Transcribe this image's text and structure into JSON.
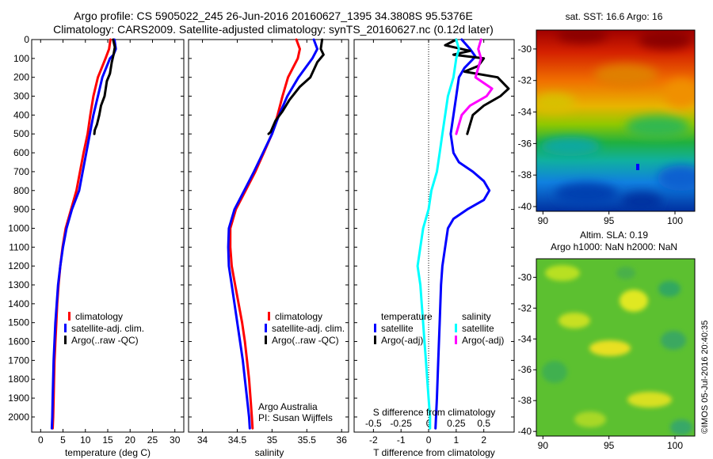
{
  "header": {
    "title_line1": "Argo profile: CS 5905022_245 26-Jun-2016 20160627_1395 34.3808S 95.5376E",
    "title_line2": "Climatology: CARS2009. Satellite-adjusted climatology: synTS_20160627.nc (0.12d later)"
  },
  "colors": {
    "climatology": "#ff0000",
    "satellite": "#0000ff",
    "argo": "#000000",
    "s_satellite": "#00ffff",
    "s_argo": "#ff00ff"
  },
  "chart_data": [
    {
      "type": "line",
      "name": "temperature-profile",
      "xlabel": "temperature (deg C)",
      "xlim": [
        -2,
        32
      ],
      "ylim": [
        2080,
        0
      ],
      "xticks": [
        "0",
        "5",
        "10",
        "15",
        "20",
        "25",
        "30"
      ],
      "yticks": [
        "0",
        "100",
        "200",
        "300",
        "400",
        "500",
        "600",
        "700",
        "800",
        "900",
        "1000",
        "1100",
        "1200",
        "1300",
        "1400",
        "1500",
        "1600",
        "1700",
        "1800",
        "1900",
        "2000"
      ],
      "legend": [
        "climatology",
        "satellite-adj. clim.",
        "Argo(..raw -QC)"
      ],
      "series": [
        {
          "color": "#ff0000",
          "points": [
            [
              15.6,
              0
            ],
            [
              15.3,
              50
            ],
            [
              14.5,
              100
            ],
            [
              12.8,
              200
            ],
            [
              11.8,
              300
            ],
            [
              11.1,
              400
            ],
            [
              10.5,
              500
            ],
            [
              9.6,
              600
            ],
            [
              8.8,
              700
            ],
            [
              8.0,
              800
            ],
            [
              6.8,
              900
            ],
            [
              5.6,
              1000
            ],
            [
              4.9,
              1100
            ],
            [
              4.4,
              1200
            ],
            [
              4.0,
              1300
            ],
            [
              3.7,
              1400
            ],
            [
              3.5,
              1500
            ],
            [
              3.3,
              1600
            ],
            [
              3.1,
              1700
            ],
            [
              3.0,
              1800
            ],
            [
              2.9,
              1900
            ],
            [
              2.8,
              2000
            ],
            [
              2.7,
              2060
            ]
          ]
        },
        {
          "color": "#0000ff",
          "points": [
            [
              16.5,
              0
            ],
            [
              16.8,
              50
            ],
            [
              16.3,
              80
            ],
            [
              15.5,
              100
            ],
            [
              13.8,
              200
            ],
            [
              12.8,
              300
            ],
            [
              11.8,
              400
            ],
            [
              11.0,
              500
            ],
            [
              10.2,
              600
            ],
            [
              9.4,
              700
            ],
            [
              8.6,
              800
            ],
            [
              7.0,
              900
            ],
            [
              5.8,
              1000
            ],
            [
              5.0,
              1100
            ],
            [
              4.4,
              1200
            ],
            [
              3.9,
              1300
            ],
            [
              3.6,
              1400
            ],
            [
              3.3,
              1500
            ],
            [
              3.1,
              1600
            ],
            [
              2.9,
              1700
            ],
            [
              2.8,
              1800
            ],
            [
              2.7,
              1900
            ],
            [
              2.6,
              2000
            ],
            [
              2.5,
              2060
            ]
          ]
        },
        {
          "color": "#000000",
          "points": [
            [
              16.2,
              0
            ],
            [
              16.6,
              40
            ],
            [
              16.3,
              80
            ],
            [
              15.9,
              120
            ],
            [
              15.5,
              180
            ],
            [
              14.8,
              220
            ],
            [
              14.3,
              300
            ],
            [
              13.5,
              350
            ],
            [
              13.1,
              400
            ],
            [
              12.6,
              450
            ],
            [
              12.1,
              480
            ],
            [
              12.0,
              500
            ]
          ]
        }
      ]
    },
    {
      "type": "line",
      "name": "salinity-profile",
      "xlabel": "salinity",
      "xlim": [
        33.8,
        36.1
      ],
      "ylim": [
        2080,
        0
      ],
      "xticks": [
        "34",
        "34.5",
        "35",
        "35.5",
        "36"
      ],
      "legend": [
        "climatology",
        "satellite-adj. clim.",
        "Argo(..raw -QC)"
      ],
      "annotation": [
        "Argo Australia",
        "PI: Susan Wijffels"
      ],
      "series": [
        {
          "color": "#ff0000",
          "points": [
            [
              35.35,
              0
            ],
            [
              35.4,
              50
            ],
            [
              35.37,
              100
            ],
            [
              35.23,
              200
            ],
            [
              35.15,
              300
            ],
            [
              35.08,
              400
            ],
            [
              35.0,
              500
            ],
            [
              34.88,
              600
            ],
            [
              34.76,
              700
            ],
            [
              34.62,
              800
            ],
            [
              34.48,
              900
            ],
            [
              34.4,
              1000
            ],
            [
              34.4,
              1100
            ],
            [
              34.42,
              1200
            ],
            [
              34.47,
              1300
            ],
            [
              34.52,
              1400
            ],
            [
              34.57,
              1500
            ],
            [
              34.61,
              1600
            ],
            [
              34.64,
              1700
            ],
            [
              34.67,
              1800
            ],
            [
              34.69,
              1900
            ],
            [
              34.71,
              2000
            ],
            [
              34.72,
              2060
            ]
          ]
        },
        {
          "color": "#0000ff",
          "points": [
            [
              35.6,
              0
            ],
            [
              35.65,
              50
            ],
            [
              35.58,
              100
            ],
            [
              35.38,
              200
            ],
            [
              35.22,
              300
            ],
            [
              35.1,
              400
            ],
            [
              35.0,
              500
            ],
            [
              34.87,
              600
            ],
            [
              34.74,
              700
            ],
            [
              34.6,
              800
            ],
            [
              34.46,
              900
            ],
            [
              34.38,
              1000
            ],
            [
              34.37,
              1100
            ],
            [
              34.38,
              1200
            ],
            [
              34.42,
              1300
            ],
            [
              34.46,
              1400
            ],
            [
              34.5,
              1500
            ],
            [
              34.54,
              1600
            ],
            [
              34.58,
              1700
            ],
            [
              34.61,
              1800
            ],
            [
              34.64,
              1900
            ],
            [
              34.67,
              2000
            ],
            [
              34.68,
              2060
            ]
          ]
        },
        {
          "color": "#000000",
          "points": [
            [
              35.72,
              0
            ],
            [
              35.7,
              50
            ],
            [
              35.74,
              80
            ],
            [
              35.65,
              120
            ],
            [
              35.55,
              200
            ],
            [
              35.4,
              250
            ],
            [
              35.25,
              320
            ],
            [
              35.15,
              380
            ],
            [
              35.05,
              430
            ],
            [
              34.98,
              490
            ],
            [
              34.95,
              500
            ]
          ]
        }
      ]
    },
    {
      "type": "line",
      "name": "difference-profile",
      "xlabel": "T difference from climatology",
      "xlabel_s": "S difference from climatology",
      "xlim": [
        -2.7,
        3.1
      ],
      "ylim": [
        2080,
        0
      ],
      "xticks": [
        "-2",
        "-1",
        "0",
        "1",
        "2"
      ],
      "sticks": [
        "-0.5",
        "-0.25",
        "0",
        "0.25",
        "0.5"
      ],
      "legend_t_title": "temperature",
      "legend_s_title": "salinity",
      "legend_t": [
        "satellite",
        "Argo(-adj)"
      ],
      "legend_s": [
        "satellite",
        "Argo(-adj)"
      ],
      "series": [
        {
          "color": "#0000ff",
          "points": [
            [
              1.2,
              0
            ],
            [
              1.5,
              50
            ],
            [
              1.7,
              90
            ],
            [
              1.3,
              150
            ],
            [
              1.1,
              200
            ],
            [
              1.0,
              300
            ],
            [
              0.9,
              400
            ],
            [
              0.8,
              500
            ],
            [
              0.9,
              600
            ],
            [
              1.1,
              650
            ],
            [
              1.6,
              700
            ],
            [
              2.0,
              750
            ],
            [
              2.2,
              800
            ],
            [
              2.0,
              850
            ],
            [
              1.4,
              900
            ],
            [
              0.9,
              950
            ],
            [
              0.7,
              1000
            ],
            [
              0.6,
              1100
            ],
            [
              0.5,
              1200
            ],
            [
              0.45,
              1300
            ],
            [
              0.4,
              1500
            ],
            [
              0.35,
              1700
            ],
            [
              0.3,
              1900
            ],
            [
              0.25,
              2060
            ]
          ]
        },
        {
          "color": "#000000",
          "points": [
            [
              1.0,
              0
            ],
            [
              0.6,
              30
            ],
            [
              1.5,
              60
            ],
            [
              0.9,
              80
            ],
            [
              2.0,
              100
            ],
            [
              1.8,
              140
            ],
            [
              1.3,
              170
            ],
            [
              2.5,
              200
            ],
            [
              2.9,
              260
            ],
            [
              2.6,
              300
            ],
            [
              2.0,
              350
            ],
            [
              1.6,
              400
            ],
            [
              1.4,
              500
            ]
          ]
        },
        {
          "color": "#00ffff",
          "points": [
            [
              1.0,
              0
            ],
            [
              1.1,
              50
            ],
            [
              1.0,
              100
            ],
            [
              0.9,
              200
            ],
            [
              0.7,
              300
            ],
            [
              0.6,
              400
            ],
            [
              0.5,
              500
            ],
            [
              0.4,
              600
            ],
            [
              0.3,
              700
            ],
            [
              0.1,
              800
            ],
            [
              0.0,
              900
            ],
            [
              -0.2,
              1000
            ],
            [
              -0.3,
              1100
            ],
            [
              -0.4,
              1200
            ],
            [
              -0.3,
              1300
            ],
            [
              -0.25,
              1400
            ],
            [
              -0.2,
              1500
            ],
            [
              -0.15,
              1600
            ],
            [
              -0.1,
              1700
            ],
            [
              -0.05,
              1800
            ],
            [
              0.0,
              1900
            ],
            [
              0.05,
              2000
            ],
            [
              0.05,
              2060
            ]
          ]
        },
        {
          "color": "#ff00ff",
          "points": [
            [
              1.9,
              0
            ],
            [
              1.8,
              50
            ],
            [
              1.9,
              100
            ],
            [
              1.7,
              200
            ],
            [
              2.3,
              260
            ],
            [
              2.1,
              300
            ],
            [
              1.5,
              350
            ],
            [
              1.2,
              400
            ],
            [
              1.1,
              450
            ],
            [
              1.0,
              500
            ]
          ]
        }
      ]
    },
    {
      "type": "heatmap",
      "name": "sst-map",
      "title": "sat. SST: 16.6 Argo: 16",
      "xlim": [
        89.5,
        101.5
      ],
      "ylim": [
        -40.3,
        -28.8
      ],
      "xticks": [
        "90",
        "95",
        "100"
      ],
      "yticks": [
        "-30",
        "-32",
        "-34",
        "-36",
        "-38",
        "-40"
      ]
    },
    {
      "type": "heatmap",
      "name": "sla-map",
      "title_line1": "Altim. SLA: 0.19",
      "title_line2": "Argo h1000: NaN h2000: NaN",
      "xlim": [
        89.5,
        101.5
      ],
      "ylim": [
        -40.3,
        -28.8
      ],
      "xticks": [
        "90",
        "95",
        "100"
      ],
      "yticks": [
        "-30",
        "-32",
        "-34",
        "-36",
        "-38",
        "-40"
      ]
    }
  ],
  "footer": {
    "stamp": "©IMOS 05-Jul-2016 20:40:35"
  }
}
